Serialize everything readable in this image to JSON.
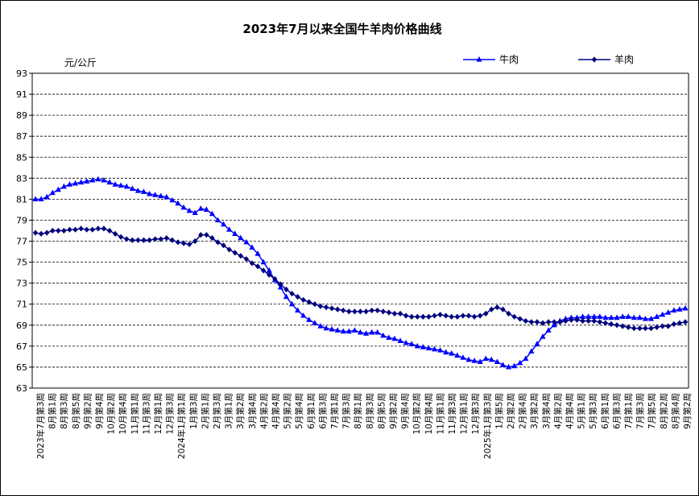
{
  "chart_data": {
    "type": "line",
    "title": "2023年7月以来全国牛羊肉价格曲线",
    "ylabel": "元/公斤",
    "ylim": [
      63,
      93
    ],
    "yticks": [
      63,
      65,
      67,
      69,
      71,
      73,
      75,
      77,
      79,
      81,
      83,
      85,
      87,
      89,
      91,
      93
    ],
    "grid": true,
    "legend_position": "top-right",
    "x_tick_labels": [
      "2023年7月第3周",
      "8月第1周",
      "8月第3周",
      "8月第5周",
      "9月第2周",
      "9月第4周",
      "10月第2周",
      "10月第4周",
      "11月第1周",
      "11月第3周",
      "12月第1周",
      "12月第3周",
      "2024年1月第1周",
      "1月第3周",
      "2月第1周",
      "2月第3周",
      "3月第1周",
      "3月第2周",
      "3月第4周",
      "4月第2周",
      "4月第4周",
      "5月第2周",
      "5月第4周",
      "6月第1周",
      "6月第3周",
      "7月第1周",
      "7月第3周",
      "8月第1周",
      "8月第3周",
      "8月第5周",
      "9月第2周",
      "9月第4周",
      "10月第2周",
      "10月第4周",
      "11月第1周",
      "11月第3周",
      "12月第1周",
      "12月第3周",
      "2025年1月第3周",
      "1月第5周",
      "2月第2周",
      "2月第4周",
      "3月第2周",
      "3月第4周",
      "4月第2周",
      "4月第4周",
      "5月第1周",
      "5月第3周",
      "6月第1周",
      "6月第3周",
      "7月第1周",
      "7月第3周",
      "7月第5周",
      "8月第2周",
      "8月第4周",
      "9月第2周"
    ],
    "series": [
      {
        "name": "牛肉",
        "marker": "triangle",
        "color": "#0000FF",
        "values": [
          81.0,
          81.0,
          81.2,
          81.6,
          81.9,
          82.2,
          82.4,
          82.5,
          82.6,
          82.7,
          82.8,
          82.9,
          82.8,
          82.6,
          82.4,
          82.3,
          82.2,
          82.0,
          81.8,
          81.7,
          81.5,
          81.4,
          81.3,
          81.2,
          80.9,
          80.6,
          80.2,
          79.9,
          79.7,
          80.1,
          80.0,
          79.6,
          79.0,
          78.6,
          78.1,
          77.7,
          77.3,
          76.9,
          76.4,
          75.8,
          75.0,
          74.2,
          73.3,
          72.6,
          71.7,
          71.0,
          70.4,
          69.9,
          69.5,
          69.2,
          68.9,
          68.7,
          68.6,
          68.5,
          68.4,
          68.4,
          68.5,
          68.3,
          68.2,
          68.3,
          68.3,
          68.0,
          67.8,
          67.7,
          67.5,
          67.3,
          67.2,
          67.0,
          66.9,
          66.8,
          66.7,
          66.6,
          66.4,
          66.3,
          66.1,
          65.9,
          65.7,
          65.6,
          65.5,
          65.8,
          65.7,
          65.5,
          65.2,
          65.0,
          65.1,
          65.4,
          65.8,
          66.5,
          67.2,
          67.9,
          68.5,
          69.0,
          69.4,
          69.6,
          69.7,
          69.7,
          69.8,
          69.8,
          69.8,
          69.8,
          69.7,
          69.7,
          69.7,
          69.8,
          69.8,
          69.7,
          69.7,
          69.6,
          69.6,
          69.8,
          70.0,
          70.2,
          70.4,
          70.5,
          70.6
        ]
      },
      {
        "name": "羊肉",
        "marker": "diamond",
        "color": "#00007F",
        "values": [
          77.8,
          77.7,
          77.8,
          78.0,
          78.0,
          78.0,
          78.1,
          78.1,
          78.2,
          78.1,
          78.1,
          78.2,
          78.2,
          78.0,
          77.7,
          77.4,
          77.2,
          77.1,
          77.1,
          77.1,
          77.1,
          77.2,
          77.2,
          77.3,
          77.1,
          76.9,
          76.8,
          76.7,
          77.0,
          77.6,
          77.6,
          77.3,
          76.9,
          76.6,
          76.2,
          75.9,
          75.6,
          75.3,
          74.9,
          74.6,
          74.2,
          73.8,
          73.4,
          72.9,
          72.4,
          72.0,
          71.7,
          71.4,
          71.2,
          71.0,
          70.8,
          70.7,
          70.6,
          70.5,
          70.4,
          70.3,
          70.3,
          70.3,
          70.3,
          70.4,
          70.4,
          70.3,
          70.2,
          70.1,
          70.1,
          69.9,
          69.8,
          69.8,
          69.8,
          69.8,
          69.9,
          70.0,
          69.9,
          69.8,
          69.8,
          69.9,
          69.9,
          69.8,
          69.9,
          70.1,
          70.5,
          70.7,
          70.5,
          70.1,
          69.8,
          69.6,
          69.4,
          69.3,
          69.3,
          69.2,
          69.3,
          69.3,
          69.3,
          69.4,
          69.5,
          69.5,
          69.4,
          69.4,
          69.4,
          69.3,
          69.2,
          69.1,
          69.0,
          68.9,
          68.8,
          68.7,
          68.7,
          68.7,
          68.7,
          68.8,
          68.9,
          68.9,
          69.1,
          69.2,
          69.3
        ]
      }
    ]
  }
}
